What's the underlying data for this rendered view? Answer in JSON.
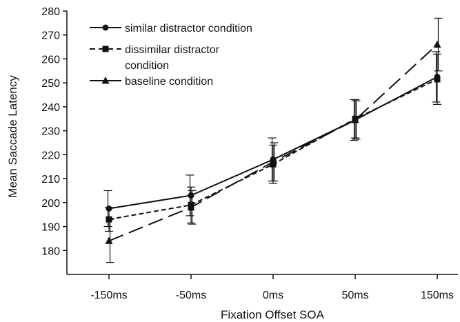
{
  "chart_data": {
    "type": "line",
    "title": "",
    "xlabel": "Fixation Offset SOA",
    "ylabel": "Mean Saccade Latency",
    "categories": [
      "-150ms",
      "-50ms",
      "0ms",
      "50ms",
      "150ms"
    ],
    "ylim": [
      170,
      280
    ],
    "yticks": [
      180,
      190,
      200,
      210,
      220,
      230,
      240,
      250,
      260,
      270,
      280
    ],
    "grid": false,
    "legend_position": "top-left",
    "series": [
      {
        "name": "similar distractor condition",
        "values": [
          197.5,
          203,
          218,
          234.5,
          252.5
        ],
        "error": [
          7.5,
          8.5,
          9,
          8.5,
          10.5
        ],
        "line_style": "solid",
        "marker": "circle",
        "color": "#111111"
      },
      {
        "name": "dissimilar distractor condition",
        "values": [
          193,
          199,
          216,
          235,
          251.5
        ],
        "error": [
          5,
          7.5,
          8,
          8,
          10.5
        ],
        "line_style": "short-dash",
        "marker": "square",
        "color": "#111111"
      },
      {
        "name": "baseline condition",
        "values": [
          184,
          198,
          217,
          234.5,
          266
        ],
        "error": [
          9,
          7,
          8,
          8,
          11
        ],
        "line_style": "long-dash",
        "marker": "triangle",
        "color": "#111111"
      }
    ],
    "legend_lines": [
      [
        "similar distractor condition"
      ],
      [
        "dissimilar distractor",
        "condition"
      ],
      [
        "baseline condition"
      ]
    ]
  }
}
